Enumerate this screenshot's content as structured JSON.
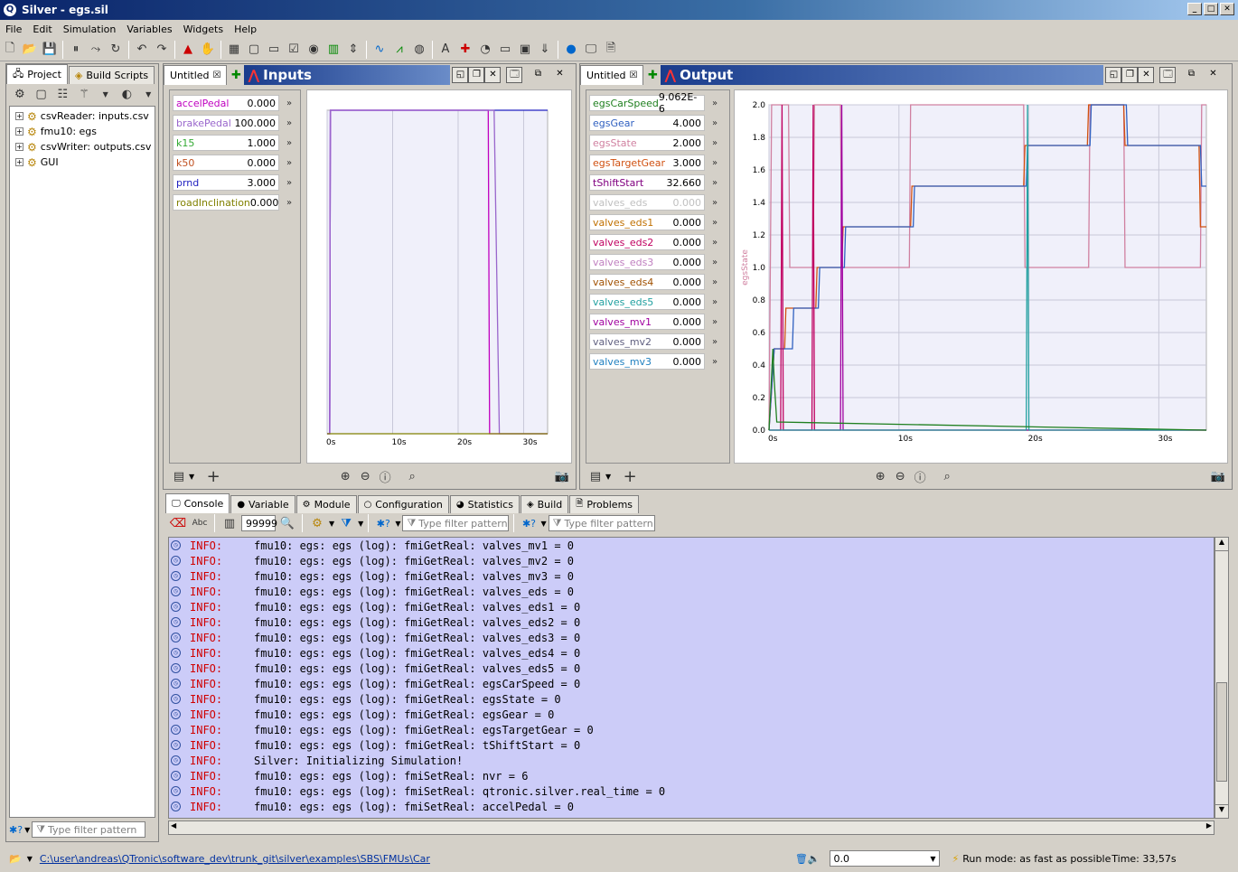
{
  "window": {
    "title": "Silver - egs.sil",
    "icon": "silver-app-icon"
  },
  "menu": [
    "File",
    "Edit",
    "Simulation",
    "Variables",
    "Widgets",
    "Help"
  ],
  "left": {
    "tabs": [
      "Project",
      "Build Scripts"
    ],
    "tree": [
      "csvReader: inputs.csv",
      "fmu10: egs",
      "csvWriter: outputs.csv",
      "GUI"
    ],
    "filter_placeholder": "Type filter pattern"
  },
  "inputs": {
    "tab": "Untitled",
    "title": "Inputs",
    "vars": [
      {
        "name": "accelPedal",
        "value": "0.000",
        "color": "#c000c0"
      },
      {
        "name": "brakePedal",
        "value": "100.000",
        "color": "#9966cc"
      },
      {
        "name": "k15",
        "value": "1.000",
        "color": "#33aa33"
      },
      {
        "name": "k50",
        "value": "0.000",
        "color": "#c05020"
      },
      {
        "name": "prnd",
        "value": "3.000",
        "color": "#2020c0"
      },
      {
        "name": "roadInclination",
        "value": "0.000",
        "color": "#808000"
      }
    ],
    "chart_data": {
      "type": "line",
      "x_ticks": [
        "0s",
        "10s",
        "20s",
        "30s"
      ],
      "xlim": [
        0,
        33.66
      ],
      "series": [
        {
          "color": "#2020c0",
          "points": [
            [
              0,
              0
            ],
            [
              0.4,
              0
            ],
            [
              0.5,
              1
            ],
            [
              33.66,
              1
            ]
          ]
        },
        {
          "color": "#c000c0",
          "points": [
            [
              0,
              0
            ],
            [
              0.4,
              0
            ],
            [
              0.5,
              1
            ],
            [
              24.6,
              1
            ],
            [
              24.8,
              0
            ],
            [
              33.66,
              0
            ]
          ]
        },
        {
          "color": "#9966cc",
          "points": [
            [
              0,
              0
            ],
            [
              0.4,
              0
            ],
            [
              0.5,
              1
            ],
            [
              25.5,
              1
            ],
            [
              26.3,
              0
            ],
            [
              33.66,
              0
            ]
          ]
        },
        {
          "color": "#808000",
          "points": [
            [
              0,
              0
            ],
            [
              33.66,
              0
            ]
          ]
        }
      ]
    }
  },
  "output": {
    "tab": "Untitled",
    "title": "Output",
    "vars": [
      {
        "name": "egsCarSpeed",
        "value": "9.062E-6",
        "color": "#208020"
      },
      {
        "name": "egsGear",
        "value": "4.000",
        "color": "#3060c0"
      },
      {
        "name": "egsState",
        "value": "2.000",
        "color": "#d080a0"
      },
      {
        "name": "egsTargetGear",
        "value": "3.000",
        "color": "#d05010"
      },
      {
        "name": "tShiftStart",
        "value": "32.660",
        "color": "#800080"
      },
      {
        "name": "valves_eds",
        "value": "0.000",
        "color": "#c0c0c0"
      },
      {
        "name": "valves_eds1",
        "value": "0.000",
        "color": "#c07000"
      },
      {
        "name": "valves_eds2",
        "value": "0.000",
        "color": "#c00060"
      },
      {
        "name": "valves_eds3",
        "value": "0.000",
        "color": "#c080c0"
      },
      {
        "name": "valves_eds4",
        "value": "0.000",
        "color": "#a05000"
      },
      {
        "name": "valves_eds5",
        "value": "0.000",
        "color": "#20a0a0"
      },
      {
        "name": "valves_mv1",
        "value": "0.000",
        "color": "#a000a0"
      },
      {
        "name": "valves_mv2",
        "value": "0.000",
        "color": "#606080"
      },
      {
        "name": "valves_mv3",
        "value": "0.000",
        "color": "#2080c0"
      }
    ],
    "chart_data": {
      "type": "line",
      "ylabel": "egsState",
      "ylim": [
        0,
        2
      ],
      "y_ticks": [
        "0.0",
        "0.2",
        "0.4",
        "0.6",
        "0.8",
        "1.0",
        "1.2",
        "1.4",
        "1.6",
        "1.8",
        "2.0"
      ],
      "x_ticks": [
        "0s",
        "10s",
        "20s",
        "30s"
      ],
      "xlim": [
        0,
        33.66
      ],
      "series": [
        {
          "color": "#d080a0",
          "points": [
            [
              0,
              0
            ],
            [
              0.2,
              2
            ],
            [
              1.5,
              2
            ],
            [
              1.6,
              1
            ],
            [
              3.4,
              1
            ],
            [
              3.5,
              2
            ],
            [
              5.5,
              2
            ],
            [
              5.6,
              1
            ],
            [
              10.8,
              1
            ],
            [
              10.9,
              2
            ],
            [
              19.6,
              2
            ],
            [
              19.7,
              1
            ],
            [
              24.6,
              1
            ],
            [
              24.7,
              2
            ],
            [
              27.3,
              2
            ],
            [
              27.4,
              1
            ],
            [
              33.2,
              1
            ],
            [
              33.3,
              2
            ],
            [
              33.66,
              2
            ]
          ]
        },
        {
          "color": "#d05010",
          "points": [
            [
              0,
              0
            ],
            [
              0.4,
              0.5
            ],
            [
              1.2,
              0.5
            ],
            [
              1.3,
              0.75
            ],
            [
              3.6,
              0.75
            ],
            [
              3.7,
              1
            ],
            [
              5.6,
              1
            ],
            [
              5.7,
              1.25
            ],
            [
              10.9,
              1.25
            ],
            [
              11,
              1.5
            ],
            [
              19.6,
              1.5
            ],
            [
              19.7,
              1.75
            ],
            [
              24.5,
              1.75
            ],
            [
              24.6,
              2
            ],
            [
              27.3,
              2
            ],
            [
              27.4,
              1.75
            ],
            [
              33.1,
              1.75
            ],
            [
              33.2,
              1.25
            ],
            [
              33.66,
              1.25
            ]
          ]
        },
        {
          "color": "#3060c0",
          "points": [
            [
              0,
              0
            ],
            [
              0.4,
              0.5
            ],
            [
              1.8,
              0.5
            ],
            [
              1.9,
              0.75
            ],
            [
              3.8,
              0.75
            ],
            [
              3.9,
              1
            ],
            [
              5.8,
              1
            ],
            [
              5.9,
              1.25
            ],
            [
              11.1,
              1.25
            ],
            [
              11.2,
              1.5
            ],
            [
              19.8,
              1.5
            ],
            [
              19.9,
              1.75
            ],
            [
              24.7,
              1.75
            ],
            [
              24.8,
              2
            ],
            [
              27.5,
              2
            ],
            [
              27.6,
              1.75
            ],
            [
              33.2,
              1.75
            ],
            [
              33.3,
              1.5
            ],
            [
              33.66,
              1.5
            ]
          ]
        },
        {
          "color": "#c00060",
          "points": [
            [
              0,
              0
            ],
            [
              0.9,
              0
            ],
            [
              1,
              2
            ],
            [
              1.1,
              0
            ],
            [
              3.3,
              0
            ],
            [
              3.4,
              2
            ],
            [
              3.5,
              0
            ],
            [
              33.66,
              0
            ]
          ]
        },
        {
          "color": "#a000a0",
          "points": [
            [
              0,
              0
            ],
            [
              5.5,
              0
            ],
            [
              5.6,
              2
            ],
            [
              5.7,
              0
            ],
            [
              33.66,
              0
            ]
          ]
        },
        {
          "color": "#20a0a0",
          "points": [
            [
              0,
              0
            ],
            [
              19.8,
              0
            ],
            [
              19.9,
              2
            ],
            [
              20,
              0
            ],
            [
              33.66,
              0
            ]
          ]
        },
        {
          "color": "#208020",
          "points": [
            [
              0,
              0
            ],
            [
              0.3,
              0.5
            ],
            [
              0.4,
              0.3
            ],
            [
              0.6,
              0.05
            ],
            [
              33.66,
              0
            ]
          ]
        }
      ]
    }
  },
  "bottom": {
    "tabs": [
      "Console",
      "Variable",
      "Module",
      "Configuration",
      "Statistics",
      "Build",
      "Problems"
    ],
    "maxlines": "99999",
    "filter1": "Type filter pattern",
    "filter2": "Type filter pattern",
    "lines": [
      [
        "INFO:",
        "fmu10: egs: egs (log): fmiGetReal: valves_mv1 = 0"
      ],
      [
        "INFO:",
        "fmu10: egs: egs (log): fmiGetReal: valves_mv2 = 0"
      ],
      [
        "INFO:",
        "fmu10: egs: egs (log): fmiGetReal: valves_mv3 = 0"
      ],
      [
        "INFO:",
        "fmu10: egs: egs (log): fmiGetReal: valves_eds = 0"
      ],
      [
        "INFO:",
        "fmu10: egs: egs (log): fmiGetReal: valves_eds1 = 0"
      ],
      [
        "INFO:",
        "fmu10: egs: egs (log): fmiGetReal: valves_eds2 = 0"
      ],
      [
        "INFO:",
        "fmu10: egs: egs (log): fmiGetReal: valves_eds3 = 0"
      ],
      [
        "INFO:",
        "fmu10: egs: egs (log): fmiGetReal: valves_eds4 = 0"
      ],
      [
        "INFO:",
        "fmu10: egs: egs (log): fmiGetReal: valves_eds5 = 0"
      ],
      [
        "INFO:",
        "fmu10: egs: egs (log): fmiGetReal: egsCarSpeed = 0"
      ],
      [
        "INFO:",
        "fmu10: egs: egs (log): fmiGetReal: egsState = 0"
      ],
      [
        "INFO:",
        "fmu10: egs: egs (log): fmiGetReal: egsGear = 0"
      ],
      [
        "INFO:",
        "fmu10: egs: egs (log): fmiGetReal: egsTargetGear = 0"
      ],
      [
        "INFO:",
        "fmu10: egs: egs (log): fmiGetReal: tShiftStart = 0"
      ],
      [
        "INFO:",
        "Silver: Initializing Simulation!"
      ],
      [
        "INFO:",
        "fmu10: egs: egs (log): fmiSetReal: nvr = 6"
      ],
      [
        "INFO:",
        "fmu10: egs: egs (log): fmiSetReal: qtronic.silver.real_time = 0"
      ],
      [
        "INFO:",
        "fmu10: egs: egs (log): fmiSetReal: accelPedal = 0"
      ]
    ]
  },
  "status": {
    "path": "C:\\user\\andreas\\QTronic\\software_dev\\trunk_git\\silver\\examples\\SBS\\FMUs\\Car",
    "speed": "0.0",
    "runmode": "Run mode: as fast as possible",
    "time": "Time:  33,57s"
  }
}
